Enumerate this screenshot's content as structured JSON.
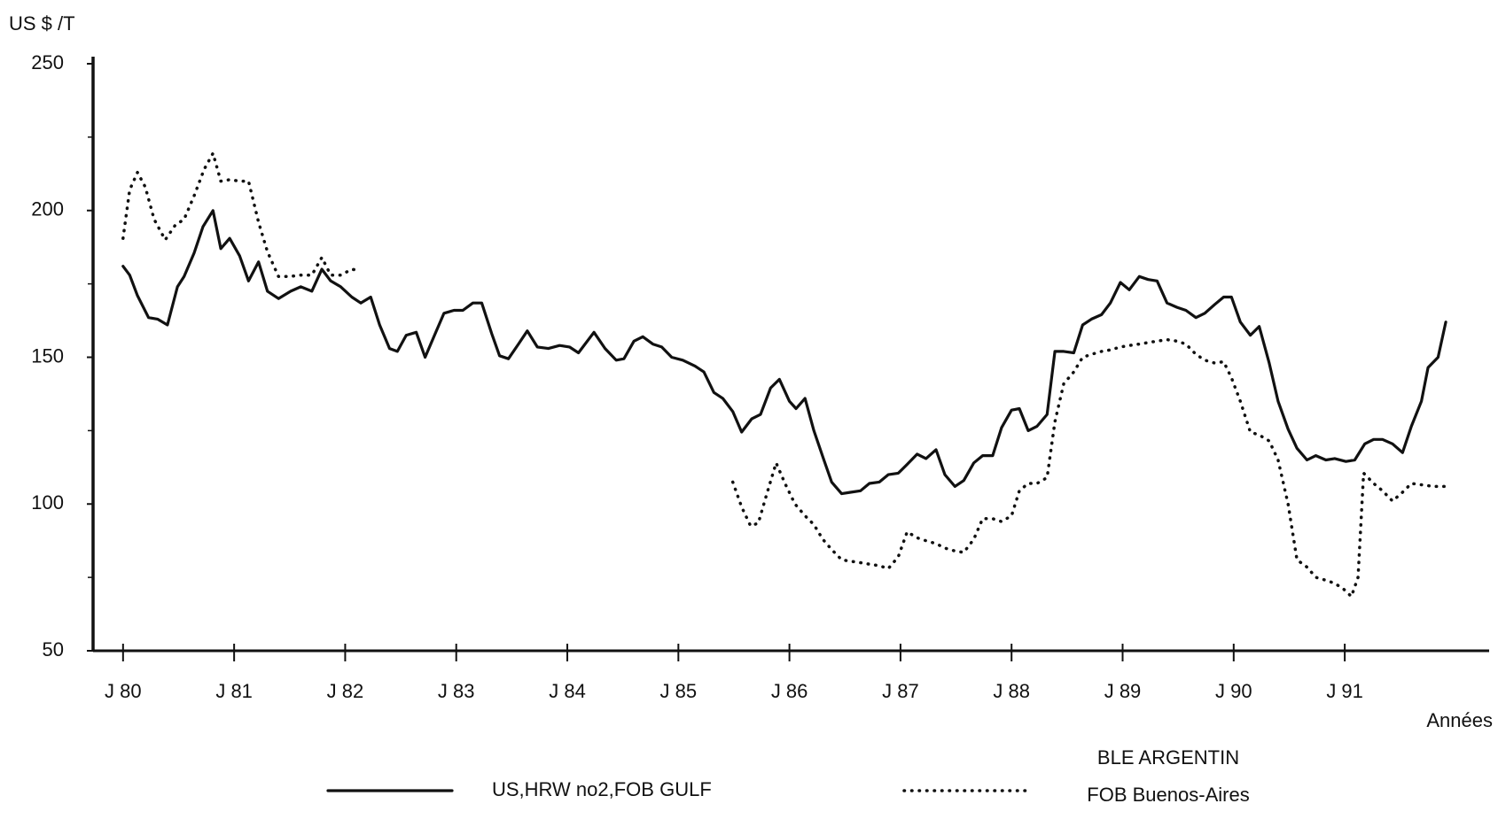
{
  "chart_data": {
    "type": "line",
    "y_label": "US $ /T",
    "x_label": "Années",
    "xlim": [
      1979.73,
      1992.3
    ],
    "xticks": [
      {
        "value": 1980,
        "label": "J 80"
      },
      {
        "value": 1981,
        "label": "J 81"
      },
      {
        "value": 1982,
        "label": "J 82"
      },
      {
        "value": 1983,
        "label": "J 83"
      },
      {
        "value": 1984,
        "label": "J 84"
      },
      {
        "value": 1985,
        "label": "J 85"
      },
      {
        "value": 1986,
        "label": "J 86"
      },
      {
        "value": 1987,
        "label": "J 87"
      },
      {
        "value": 1988,
        "label": "J 88"
      },
      {
        "value": 1989,
        "label": "J 89"
      },
      {
        "value": 1990,
        "label": "J 90"
      },
      {
        "value": 1991,
        "label": "J 91"
      }
    ],
    "ylim": [
      50,
      250
    ],
    "yticks": [
      50,
      100,
      150,
      200,
      250
    ],
    "yminorticks": [
      75,
      125,
      175,
      225
    ],
    "series": [
      {
        "name": [
          "US,HRW no2,FOB GULF"
        ],
        "color": "#111111",
        "style": "solid",
        "x": [
          1980.0,
          1980.06,
          1980.13,
          1980.23,
          1980.31,
          1980.4,
          1980.49,
          1980.55,
          1980.64,
          1980.72,
          1980.81,
          1980.88,
          1980.96,
          1981.05,
          1981.13,
          1981.22,
          1981.3,
          1981.4,
          1981.51,
          1981.6,
          1981.7,
          1981.79,
          1981.87,
          1981.96,
          1982.06,
          1982.14,
          1982.23,
          1982.31,
          1982.4,
          1982.47,
          1982.55,
          1982.64,
          1982.72,
          1982.81,
          1982.89,
          1982.98,
          1983.06,
          1983.15,
          1983.23,
          1983.32,
          1983.39,
          1983.47,
          1983.56,
          1983.64,
          1983.73,
          1983.83,
          1983.93,
          1984.02,
          1984.1,
          1984.24,
          1984.34,
          1984.44,
          1984.51,
          1984.6,
          1984.68,
          1984.77,
          1984.85,
          1984.94,
          1985.04,
          1985.15,
          1985.23,
          1985.32,
          1985.4,
          1985.49,
          1985.57,
          1985.66,
          1985.74,
          1985.83,
          1985.91,
          1986.0,
          1986.06,
          1986.14,
          1986.22,
          1986.31,
          1986.38,
          1986.47,
          1986.55,
          1986.64,
          1986.72,
          1986.81,
          1986.89,
          1986.98,
          1987.06,
          1987.15,
          1987.23,
          1987.32,
          1987.4,
          1987.49,
          1987.57,
          1987.66,
          1987.74,
          1987.83,
          1987.91,
          1988.0,
          1988.07,
          1988.15,
          1988.23,
          1988.32,
          1988.39,
          1988.47,
          1988.56,
          1988.64,
          1988.72,
          1988.81,
          1988.89,
          1988.98,
          1989.06,
          1989.15,
          1989.23,
          1989.31,
          1989.4,
          1989.49,
          1989.57,
          1989.66,
          1989.74,
          1989.83,
          1989.91,
          1989.98,
          1990.06,
          1990.15,
          1990.23,
          1990.32,
          1990.4,
          1990.49,
          1990.57,
          1990.66,
          1990.74,
          1990.83,
          1990.91,
          1991.01,
          1991.09,
          1991.18,
          1991.26,
          1991.34,
          1991.43,
          1991.52,
          1991.6,
          1991.69,
          1991.75,
          1991.84,
          1991.91
        ],
        "values": [
          181,
          178,
          171,
          163.5,
          163,
          161,
          174,
          177.5,
          185.5,
          194.5,
          200,
          187,
          190.5,
          184.5,
          176,
          182.5,
          172.5,
          170,
          172.5,
          174,
          172.5,
          180,
          176,
          174,
          170.5,
          168.5,
          170.5,
          161,
          153,
          152,
          157.5,
          158.5,
          150,
          158,
          165,
          166,
          166,
          168.5,
          168.5,
          158,
          150.5,
          149.5,
          154.5,
          159,
          153.5,
          153,
          154,
          153.5,
          151.5,
          158.5,
          153,
          149,
          149.5,
          155.5,
          157,
          154.5,
          153.5,
          150,
          149,
          147,
          145,
          138,
          136,
          131.5,
          124.5,
          129,
          130.5,
          139.5,
          142.5,
          135,
          132.5,
          136,
          125,
          115,
          107.5,
          103.5,
          104,
          104.5,
          107,
          107.5,
          110,
          110.5,
          113.5,
          117,
          115.5,
          118.5,
          110,
          106,
          108,
          114,
          116.5,
          116.5,
          126,
          132,
          132.5,
          125,
          126.5,
          130.5,
          152,
          152,
          151.5,
          161,
          163,
          164.5,
          168.5,
          175.5,
          173,
          177.5,
          176.5,
          176,
          168.5,
          167,
          166,
          163.5,
          165,
          168,
          170.5,
          170.5,
          162,
          157.5,
          160.5,
          148,
          135,
          125.5,
          119,
          115,
          116.5,
          115,
          115.5,
          114.5,
          115,
          120.5,
          122,
          122,
          120.5,
          117.5,
          126.5,
          135,
          146.5,
          150,
          162
        ]
      },
      {
        "name": [
          "BLE ARGENTIN",
          "FOB Buenos-Aires"
        ],
        "color": "#111111",
        "style": "dotted",
        "x": [
          1980.0,
          1980.06,
          1980.13,
          1980.2,
          1980.28,
          1980.38,
          1980.47,
          1980.55,
          1980.64,
          1980.73,
          1980.81,
          1980.88,
          1980.96,
          1981.05,
          1981.13,
          1981.22,
          1981.3,
          1981.4,
          1981.5,
          1981.6,
          1981.7,
          1981.79,
          1981.87,
          1981.96,
          1982.06,
          1982.14,
          1983.0,
          1985.49,
          1985.57,
          1985.65,
          1985.72,
          1985.8,
          1985.88,
          1985.96,
          1986.05,
          1986.14,
          1986.22,
          1986.3,
          1986.38,
          1986.47,
          1986.55,
          1986.64,
          1986.72,
          1986.81,
          1986.89,
          1986.98,
          1987.06,
          1987.15,
          1987.23,
          1987.32,
          1987.4,
          1987.49,
          1987.57,
          1987.66,
          1987.74,
          1987.83,
          1987.91,
          1988.0,
          1988.07,
          1988.15,
          1988.23,
          1988.32,
          1988.39,
          1988.47,
          1988.56,
          1988.64,
          1988.72,
          1988.81,
          1988.89,
          1988.98,
          1989.06,
          1989.15,
          1989.23,
          1989.31,
          1989.4,
          1989.49,
          1989.57,
          1989.66,
          1989.74,
          1989.83,
          1989.91,
          1989.98,
          1990.06,
          1990.15,
          1990.23,
          1990.32,
          1990.4,
          1990.49,
          1990.57,
          1990.66,
          1990.74,
          1990.83,
          1990.91,
          1990.99,
          1991.06,
          1991.12,
          1991.17,
          1991.26,
          1991.34,
          1991.43,
          1991.52,
          1991.6,
          1991.7,
          1991.8,
          1991.91
        ],
        "values": [
          190.5,
          207,
          213,
          208,
          197,
          190,
          195,
          197,
          205,
          214,
          219.5,
          210,
          210.5,
          210,
          210,
          196,
          186,
          177.5,
          177.5,
          178,
          178,
          184,
          178,
          178,
          180,
          179.5,
          null,
          107.5,
          99,
          92.5,
          93.5,
          104,
          114,
          107,
          100,
          96,
          93,
          88,
          84.5,
          81,
          80.5,
          80,
          79.5,
          79,
          78,
          82,
          90.5,
          88.5,
          87.5,
          86.5,
          85,
          84,
          83.5,
          88,
          95,
          95,
          94,
          96,
          104.5,
          107,
          107,
          109,
          128,
          141,
          145,
          150,
          151,
          152,
          152.5,
          153.5,
          154,
          154.5,
          155,
          155.5,
          156,
          155.5,
          154.5,
          151,
          149,
          148,
          148.5,
          143,
          135,
          124.5,
          123.5,
          121.5,
          115,
          100,
          81,
          78.5,
          75,
          74,
          73,
          71,
          68.5,
          75,
          110.5,
          107,
          104.5,
          101,
          104,
          107,
          106.5,
          106,
          106
        ]
      }
    ]
  }
}
